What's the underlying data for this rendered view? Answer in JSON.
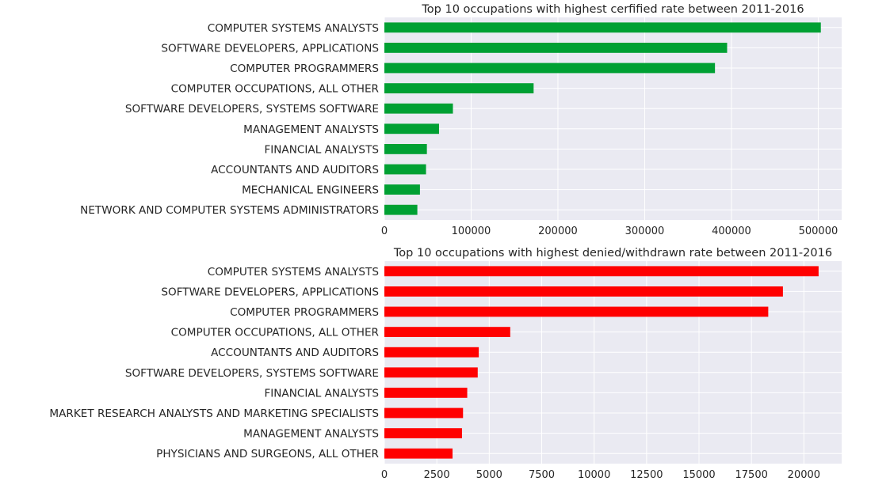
{
  "chart_data": [
    {
      "type": "bar",
      "orientation": "horizontal",
      "title": "Top 10 occupations with highest cerfified rate between 2011-2016",
      "categories": [
        "COMPUTER SYSTEMS ANALYSTS",
        "SOFTWARE DEVELOPERS, APPLICATIONS",
        "COMPUTER PROGRAMMERS",
        "COMPUTER OCCUPATIONS, ALL OTHER",
        "SOFTWARE DEVELOPERS, SYSTEMS SOFTWARE",
        "MANAGEMENT ANALYSTS",
        "FINANCIAL ANALYSTS",
        "ACCOUNTANTS AND AUDITORS",
        "MECHANICAL ENGINEERS",
        "NETWORK AND COMPUTER SYSTEMS ADMINISTRATORS"
      ],
      "values": [
        503000,
        395000,
        381000,
        172000,
        79000,
        63000,
        49000,
        48000,
        41000,
        38000
      ],
      "xlim": [
        0,
        527000
      ],
      "xticks": [
        0,
        100000,
        200000,
        300000,
        400000,
        500000
      ],
      "xtick_labels": [
        "0",
        "100000",
        "200000",
        "300000",
        "400000",
        "500000"
      ],
      "xlabel": "",
      "ylabel": "",
      "color": "#00a033",
      "grid": true
    },
    {
      "type": "bar",
      "orientation": "horizontal",
      "title": "Top 10 occupations with highest denied/withdrawn rate between 2011-2016",
      "categories": [
        "COMPUTER SYSTEMS ANALYSTS",
        "SOFTWARE DEVELOPERS, APPLICATIONS",
        "COMPUTER PROGRAMMERS",
        "COMPUTER OCCUPATIONS, ALL OTHER",
        "ACCOUNTANTS AND AUDITORS",
        "SOFTWARE DEVELOPERS, SYSTEMS SOFTWARE",
        "FINANCIAL ANALYSTS",
        "MARKET RESEARCH ANALYSTS AND MARKETING SPECIALISTS",
        "MANAGEMENT ANALYSTS",
        "PHYSICIANS AND SURGEONS, ALL OTHER"
      ],
      "values": [
        20700,
        19000,
        18300,
        6000,
        4500,
        4450,
        3950,
        3750,
        3700,
        3250
      ],
      "xlim": [
        0,
        21800
      ],
      "xticks": [
        0,
        2500,
        5000,
        7500,
        10000,
        12500,
        15000,
        17500,
        20000
      ],
      "xtick_labels": [
        "0",
        "2500",
        "5000",
        "7500",
        "10000",
        "12500",
        "15000",
        "17500",
        "20000"
      ],
      "xlabel": "",
      "ylabel": "",
      "color": "#ff0000",
      "grid": true
    }
  ]
}
